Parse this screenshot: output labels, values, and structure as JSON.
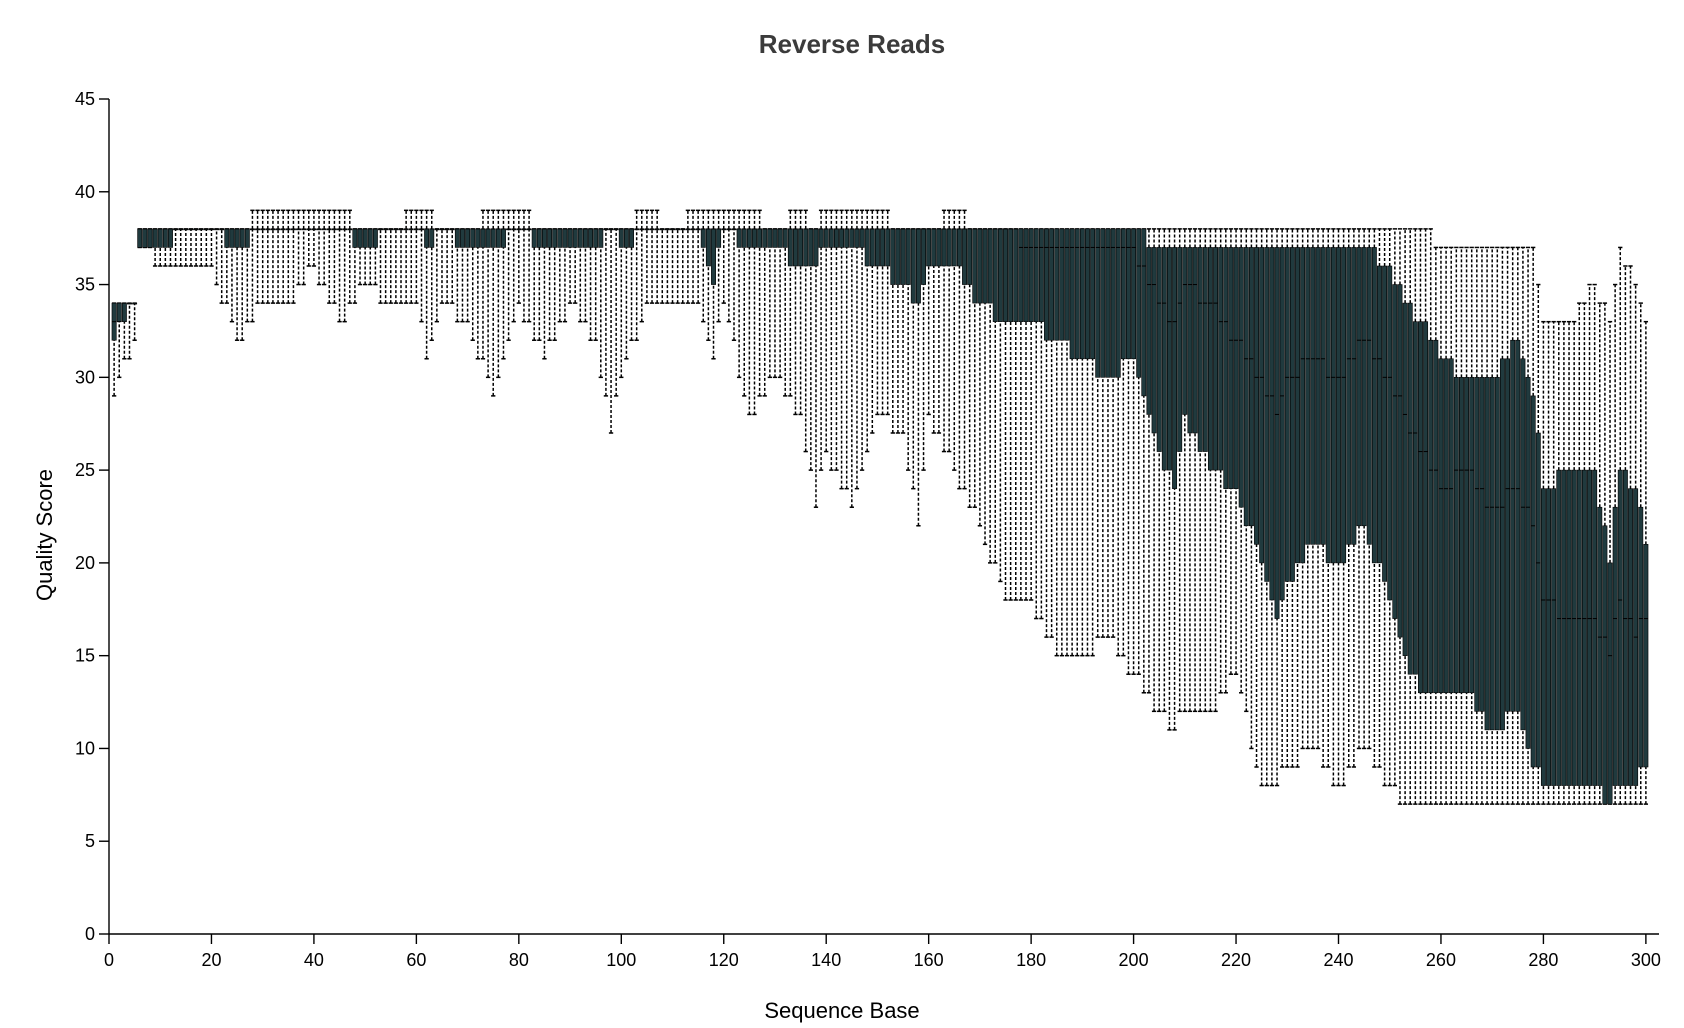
{
  "chart_data": {
    "type": "box",
    "title": "Reverse Reads",
    "xlabel": "Sequence Base",
    "ylabel": "Quality Score",
    "xlim": [
      0,
      301
    ],
    "ylim": [
      0,
      45
    ],
    "xticks": [
      0,
      20,
      40,
      60,
      80,
      100,
      120,
      140,
      160,
      180,
      200,
      220,
      240,
      260,
      280,
      300
    ],
    "yticks": [
      0,
      5,
      10,
      15,
      20,
      25,
      30,
      35,
      40,
      45
    ],
    "grid": false,
    "legend": "none",
    "box_color": "#203a3e",
    "series": [
      {
        "stat_order": [
          "position",
          "whisker_low",
          "q1",
          "median",
          "q3",
          "whisker_high"
        ],
        "stats": [
          [
            1,
            29,
            32,
            33,
            34,
            34
          ],
          [
            5,
            32,
            34,
            34,
            34,
            34
          ],
          [
            6,
            37,
            37,
            38,
            38,
            38
          ],
          [
            10,
            36,
            37,
            38,
            38,
            38
          ],
          [
            15,
            36,
            38,
            38,
            38,
            38
          ],
          [
            20,
            36,
            38,
            38,
            38,
            38
          ],
          [
            25,
            32,
            37,
            38,
            38,
            38
          ],
          [
            30,
            34,
            38,
            38,
            38,
            39
          ],
          [
            35,
            34,
            38,
            38,
            38,
            39
          ],
          [
            40,
            36,
            38,
            38,
            38,
            39
          ],
          [
            45,
            33,
            38,
            38,
            38,
            39
          ],
          [
            50,
            35,
            37,
            38,
            38,
            38
          ],
          [
            55,
            34,
            38,
            38,
            38,
            38
          ],
          [
            60,
            34,
            38,
            38,
            38,
            39
          ],
          [
            62,
            31,
            37,
            38,
            38,
            39
          ],
          [
            65,
            34,
            38,
            38,
            38,
            38
          ],
          [
            70,
            33,
            37,
            38,
            38,
            38
          ],
          [
            75,
            29,
            37,
            38,
            38,
            39
          ],
          [
            80,
            34,
            38,
            38,
            38,
            39
          ],
          [
            85,
            31,
            37,
            38,
            38,
            38
          ],
          [
            90,
            34,
            37,
            38,
            38,
            38
          ],
          [
            95,
            32,
            37,
            38,
            38,
            38
          ],
          [
            98,
            27,
            38,
            38,
            38,
            38
          ],
          [
            100,
            30,
            37,
            38,
            38,
            38
          ],
          [
            105,
            34,
            38,
            38,
            38,
            39
          ],
          [
            110,
            34,
            38,
            38,
            38,
            38
          ],
          [
            115,
            34,
            38,
            38,
            38,
            39
          ],
          [
            118,
            31,
            35,
            38,
            38,
            39
          ],
          [
            120,
            34,
            38,
            38,
            38,
            39
          ],
          [
            125,
            28,
            37,
            38,
            38,
            39
          ],
          [
            130,
            30,
            37,
            38,
            38,
            38
          ],
          [
            135,
            28,
            36,
            38,
            38,
            39
          ],
          [
            138,
            23,
            36,
            38,
            38,
            38
          ],
          [
            140,
            26,
            37,
            38,
            38,
            39
          ],
          [
            145,
            23,
            37,
            38,
            38,
            39
          ],
          [
            150,
            28,
            36,
            38,
            38,
            39
          ],
          [
            155,
            27,
            35,
            38,
            38,
            38
          ],
          [
            158,
            22,
            34,
            38,
            38,
            38
          ],
          [
            160,
            28,
            36,
            38,
            38,
            38
          ],
          [
            165,
            25,
            36,
            38,
            38,
            39
          ],
          [
            170,
            22,
            34,
            38,
            38,
            38
          ],
          [
            175,
            18,
            33,
            38,
            38,
            38
          ],
          [
            180,
            18,
            33,
            37,
            38,
            38
          ],
          [
            185,
            15,
            32,
            37,
            38,
            38
          ],
          [
            190,
            15,
            31,
            37,
            38,
            38
          ],
          [
            195,
            16,
            30,
            37,
            38,
            38
          ],
          [
            200,
            14,
            31,
            37,
            38,
            38
          ],
          [
            205,
            12,
            26,
            34,
            37,
            38
          ],
          [
            208,
            11,
            24,
            33,
            37,
            38
          ],
          [
            210,
            12,
            28,
            35,
            37,
            38
          ],
          [
            215,
            12,
            25,
            34,
            37,
            38
          ],
          [
            220,
            14,
            24,
            32,
            37,
            38
          ],
          [
            225,
            8,
            20,
            30,
            37,
            38
          ],
          [
            228,
            8,
            17,
            28,
            37,
            38
          ],
          [
            230,
            9,
            19,
            30,
            37,
            38
          ],
          [
            235,
            10,
            21,
            31,
            37,
            38
          ],
          [
            240,
            8,
            20,
            30,
            37,
            38
          ],
          [
            245,
            10,
            22,
            32,
            37,
            38
          ],
          [
            250,
            8,
            18,
            30,
            36,
            38
          ],
          [
            253,
            7,
            15,
            28,
            34,
            38
          ],
          [
            256,
            7,
            13,
            26,
            33,
            38
          ],
          [
            260,
            7,
            13,
            24,
            31,
            37
          ],
          [
            265,
            7,
            13,
            25,
            30,
            37
          ],
          [
            270,
            7,
            11,
            23,
            30,
            37
          ],
          [
            275,
            7,
            12,
            24,
            32,
            37
          ],
          [
            278,
            7,
            9,
            22,
            29,
            37
          ],
          [
            280,
            7,
            8,
            18,
            24,
            33
          ],
          [
            285,
            7,
            8,
            17,
            25,
            33
          ],
          [
            290,
            7,
            8,
            17,
            25,
            35
          ],
          [
            293,
            7,
            7,
            15,
            20,
            33
          ],
          [
            295,
            7,
            8,
            18,
            25,
            37
          ],
          [
            298,
            7,
            8,
            16,
            24,
            35
          ],
          [
            300,
            7,
            9,
            17,
            21,
            33
          ]
        ]
      }
    ]
  }
}
